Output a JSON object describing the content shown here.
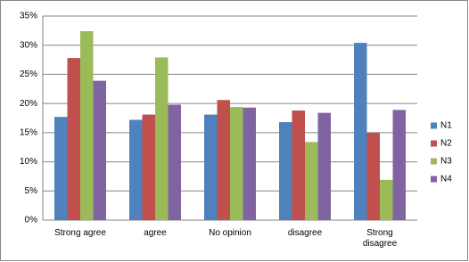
{
  "chart_data": {
    "type": "bar",
    "categories": [
      "Strong agree",
      "agree",
      "No opinion",
      "disagree",
      "Strong disagree"
    ],
    "series": [
      {
        "name": "N1",
        "color": "#4f81bd",
        "values": [
          17.7,
          17.2,
          18.1,
          16.8,
          30.4
        ]
      },
      {
        "name": "N2",
        "color": "#c0504d",
        "values": [
          27.8,
          18.1,
          20.6,
          18.8,
          15.0
        ]
      },
      {
        "name": "N3",
        "color": "#9bbb59",
        "values": [
          32.4,
          27.9,
          19.4,
          13.4,
          6.9
        ]
      },
      {
        "name": "N4",
        "color": "#8064a2",
        "values": [
          23.9,
          19.8,
          19.3,
          18.4,
          18.9
        ]
      }
    ],
    "ylim": [
      0,
      35
    ],
    "yticks": [
      {
        "value": 0,
        "label": "0%"
      },
      {
        "value": 5,
        "label": "5%"
      },
      {
        "value": 10,
        "label": "10%"
      },
      {
        "value": 15,
        "label": "15%"
      },
      {
        "value": 20,
        "label": "20%"
      },
      {
        "value": 25,
        "label": "25%"
      },
      {
        "value": 30,
        "label": "30%"
      },
      {
        "value": 35,
        "label": "35%"
      }
    ],
    "grid": true,
    "legend": "right"
  }
}
